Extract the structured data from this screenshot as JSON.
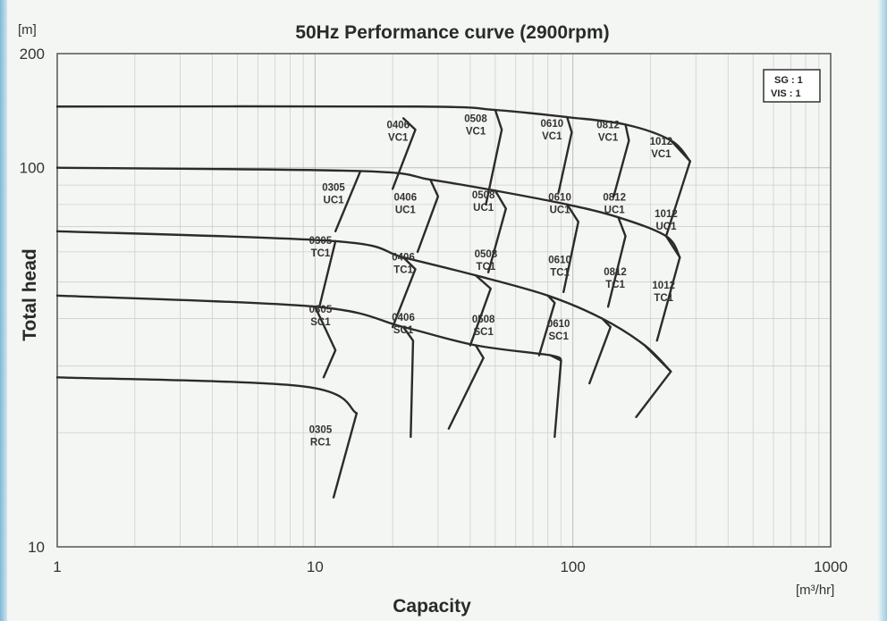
{
  "chart_data": {
    "type": "line",
    "title": "50Hz Performance curve (2900rpm)",
    "xlabel": "Capacity",
    "xunit": "[m³/hr]",
    "ylabel": "Total head",
    "yunit": "[m]",
    "x_scale": "log",
    "y_scale": "log",
    "xlim": [
      1,
      1000
    ],
    "ylim": [
      10,
      200
    ],
    "x_ticks": [
      "1",
      "10",
      "100",
      "1000"
    ],
    "y_ticks": [
      "10",
      "100",
      "200"
    ],
    "grid": true,
    "legend_box": {
      "placement": "top-right",
      "lines": [
        "SG : 1",
        "VIS : 1"
      ]
    },
    "performance_lines": [
      {
        "name": "VC1 shutoff",
        "points": [
          [
            1,
            145
          ],
          [
            25,
            145
          ],
          [
            50,
            142
          ],
          [
            95,
            136
          ],
          [
            160,
            130
          ],
          [
            240,
            118
          ],
          [
            285,
            104
          ]
        ]
      },
      {
        "name": "UC1 shutoff",
        "points": [
          [
            1,
            100
          ],
          [
            15,
            98
          ],
          [
            28,
            93
          ],
          [
            50,
            87
          ],
          [
            95,
            80
          ],
          [
            150,
            74
          ],
          [
            230,
            66
          ],
          [
            260,
            58
          ]
        ]
      },
      {
        "name": "TC1 shutoff",
        "points": [
          [
            1,
            68
          ],
          [
            12,
            64
          ],
          [
            22,
            58
          ],
          [
            42,
            52
          ],
          [
            80,
            46
          ],
          [
            130,
            40
          ],
          [
            190,
            34
          ],
          [
            240,
            29
          ]
        ]
      },
      {
        "name": "SC1 shutoff",
        "points": [
          [
            1,
            46
          ],
          [
            10,
            43
          ],
          [
            22,
            38
          ],
          [
            42,
            34
          ],
          [
            82,
            32
          ],
          [
            90,
            31
          ]
        ]
      },
      {
        "name": "RC1 shutoff",
        "points": [
          [
            1,
            28
          ],
          [
            9,
            26.5
          ],
          [
            14.5,
            22.5
          ]
        ]
      }
    ],
    "models": [
      {
        "label": [
          "0406",
          "VC1"
        ],
        "at": [
          21,
          127
        ],
        "boundary": [
          [
            22,
            135
          ],
          [
            24.5,
            126
          ],
          [
            20,
            88
          ]
        ]
      },
      {
        "label": [
          "0508",
          "VC1"
        ],
        "at": [
          42,
          132
        ],
        "boundary": [
          [
            50,
            142
          ],
          [
            53,
            126
          ],
          [
            46,
            80
          ]
        ]
      },
      {
        "label": [
          "0610",
          "VC1"
        ],
        "at": [
          83,
          128
        ],
        "boundary": [
          [
            95,
            136
          ],
          [
            99,
            124
          ],
          [
            88,
            86
          ]
        ]
      },
      {
        "label": [
          "0812",
          "VC1"
        ],
        "at": [
          137,
          127
        ],
        "boundary": [
          [
            160,
            130
          ],
          [
            165,
            118
          ],
          [
            144,
            84
          ]
        ]
      },
      {
        "label": [
          "1012",
          "VC1"
        ],
        "at": [
          220,
          115
        ],
        "boundary": [
          [
            240,
            118
          ],
          [
            285,
            104
          ],
          [
            230,
            66
          ]
        ]
      },
      {
        "label": [
          "0305",
          "UC1"
        ],
        "at": [
          11.8,
          87
        ],
        "boundary": [
          [
            15,
            98
          ],
          [
            12,
            68
          ]
        ]
      },
      {
        "label": [
          "0406",
          "UC1"
        ],
        "at": [
          22.4,
          82
        ],
        "boundary": [
          [
            28,
            93
          ],
          [
            30,
            84
          ],
          [
            25,
            60
          ]
        ]
      },
      {
        "label": [
          "0508",
          "UC1"
        ],
        "at": [
          45,
          83
        ],
        "boundary": [
          [
            50,
            87
          ],
          [
            55,
            78
          ],
          [
            47,
            53
          ]
        ]
      },
      {
        "label": [
          "0610",
          "UC1"
        ],
        "at": [
          89,
          82
        ],
        "boundary": [
          [
            95,
            80
          ],
          [
            105,
            72
          ],
          [
            92,
            47
          ]
        ]
      },
      {
        "label": [
          "0812",
          "UC1"
        ],
        "at": [
          145,
          82
        ],
        "boundary": [
          [
            150,
            74
          ],
          [
            160,
            66
          ],
          [
            137,
            43
          ]
        ]
      },
      {
        "label": [
          "1012",
          "UC1"
        ],
        "at": [
          230,
          74
        ],
        "boundary": [
          [
            230,
            66
          ],
          [
            260,
            58
          ],
          [
            212,
            35
          ]
        ]
      },
      {
        "label": [
          "0305",
          "TC1"
        ],
        "at": [
          10.5,
          63
        ],
        "boundary": [
          [
            12,
            64
          ],
          [
            10.4,
            43
          ]
        ]
      },
      {
        "label": [
          "0406",
          "TC1"
        ],
        "at": [
          22,
          57
        ],
        "boundary": [
          [
            22,
            58
          ],
          [
            24.5,
            54
          ],
          [
            20,
            38
          ]
        ]
      },
      {
        "label": [
          "0508",
          "TC1"
        ],
        "at": [
          46,
          58
        ],
        "boundary": [
          [
            42,
            52
          ],
          [
            48,
            48
          ],
          [
            40,
            34
          ]
        ]
      },
      {
        "label": [
          "0610",
          "TC1"
        ],
        "at": [
          89,
          56
        ],
        "boundary": [
          [
            80,
            46
          ],
          [
            85,
            44
          ],
          [
            74,
            32
          ]
        ]
      },
      {
        "label": [
          "0812",
          "TC1"
        ],
        "at": [
          146,
          52
        ],
        "boundary": [
          [
            130,
            40
          ],
          [
            140,
            38
          ],
          [
            116,
            27
          ]
        ]
      },
      {
        "label": [
          "1012",
          "TC1"
        ],
        "at": [
          225,
          48
        ],
        "boundary": [
          [
            190,
            34
          ],
          [
            240,
            29
          ],
          [
            176,
            22
          ]
        ]
      },
      {
        "label": [
          "0305",
          "SC1"
        ],
        "at": [
          10.5,
          41.5
        ],
        "boundary": [
          [
            10,
            43
          ],
          [
            12,
            33
          ],
          [
            10.8,
            28
          ]
        ]
      },
      {
        "label": [
          "0406",
          "SC1"
        ],
        "at": [
          22,
          39.5
        ],
        "boundary": [
          [
            22,
            38
          ],
          [
            24,
            35
          ],
          [
            23.5,
            19.5
          ]
        ]
      },
      {
        "label": [
          "0508",
          "SC1"
        ],
        "at": [
          45,
          39
        ],
        "boundary": [
          [
            42,
            34
          ],
          [
            45,
            31.5
          ],
          [
            33,
            20.5
          ]
        ]
      },
      {
        "label": [
          "0610",
          "SC1"
        ],
        "at": [
          88,
          38
        ],
        "boundary": [
          [
            82,
            32
          ],
          [
            90,
            31
          ],
          [
            85,
            19.5
          ]
        ]
      },
      {
        "label": [
          "0305",
          "RC1"
        ],
        "at": [
          10.5,
          20
        ],
        "boundary": [
          [
            14.5,
            22.5
          ],
          [
            11.8,
            13.5
          ]
        ]
      }
    ]
  }
}
